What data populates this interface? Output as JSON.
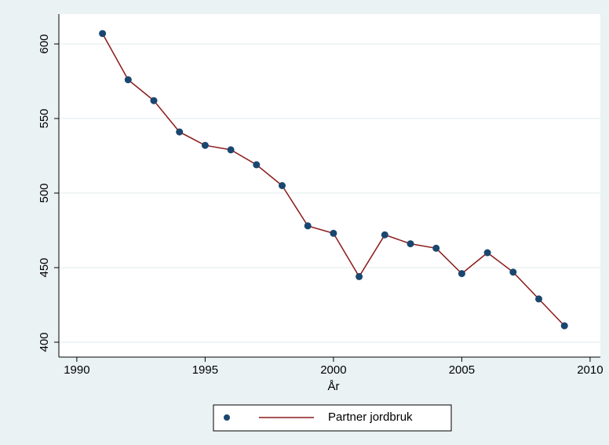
{
  "chart_data": {
    "type": "line",
    "x_label": "År",
    "x": [
      1991,
      1992,
      1993,
      1994,
      1995,
      1996,
      1997,
      1998,
      1999,
      2000,
      2001,
      2002,
      2003,
      2004,
      2005,
      2006,
      2007,
      2008,
      2009
    ],
    "series": [
      {
        "name": "Partner jordbruk",
        "color": "#8b1a1a",
        "marker_color": "#1a476f",
        "values": [
          607,
          576,
          562,
          541,
          532,
          529,
          519,
          505,
          478,
          473,
          444,
          472,
          466,
          463,
          446,
          460,
          447,
          429,
          411
        ]
      }
    ],
    "xlim": [
      1989.3,
      2010.4
    ],
    "xticks": [
      1990,
      1995,
      2000,
      2005,
      2010
    ],
    "ylim": [
      390,
      620
    ],
    "yticks": [
      400,
      450,
      500,
      550,
      600
    ],
    "grid": true,
    "legend": "bottom"
  }
}
